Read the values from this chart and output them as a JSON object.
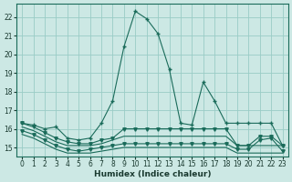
{
  "xlabel": "Humidex (Indice chaleur)",
  "background_color": "#cce8e4",
  "grid_color": "#99ccc6",
  "line_color": "#1a6b5a",
  "xlim": [
    -0.5,
    23.5
  ],
  "ylim": [
    14.5,
    22.7
  ],
  "yticks": [
    15,
    16,
    17,
    18,
    19,
    20,
    21,
    22
  ],
  "xticks": [
    0,
    1,
    2,
    3,
    4,
    5,
    6,
    7,
    8,
    9,
    10,
    11,
    12,
    13,
    14,
    15,
    16,
    17,
    18,
    19,
    20,
    21,
    22,
    23
  ],
  "main_x": [
    0,
    1,
    2,
    3,
    4,
    5,
    6,
    7,
    8,
    9,
    10,
    11,
    12,
    13,
    14,
    15,
    16,
    17,
    18,
    19,
    20,
    21,
    22,
    23
  ],
  "main_y": [
    16.3,
    16.2,
    16.0,
    16.1,
    15.5,
    15.4,
    15.5,
    16.3,
    17.5,
    20.4,
    22.3,
    21.9,
    21.1,
    19.2,
    16.3,
    16.2,
    18.5,
    17.5,
    16.3,
    16.3,
    16.3,
    16.3,
    16.3,
    15.1
  ],
  "line2_x": [
    0,
    1,
    2,
    3,
    4,
    5,
    6,
    7,
    8,
    9,
    10,
    11,
    12,
    13,
    14,
    15,
    16,
    17,
    18,
    19,
    20,
    21,
    22,
    23
  ],
  "line2_y": [
    16.3,
    16.1,
    15.8,
    15.5,
    15.3,
    15.2,
    15.2,
    15.4,
    15.5,
    16.0,
    16.0,
    16.0,
    16.0,
    16.0,
    16.0,
    16.0,
    16.0,
    16.0,
    16.0,
    15.1,
    15.1,
    15.6,
    15.6,
    15.1
  ],
  "line3_x": [
    0,
    1,
    2,
    3,
    4,
    5,
    6,
    7,
    8,
    9,
    10,
    11,
    12,
    13,
    14,
    15,
    16,
    17,
    18,
    19,
    20,
    21,
    22,
    23
  ],
  "line3_y": [
    16.1,
    15.9,
    15.6,
    15.3,
    15.1,
    15.1,
    15.1,
    15.2,
    15.4,
    15.6,
    15.6,
    15.6,
    15.6,
    15.6,
    15.6,
    15.6,
    15.6,
    15.6,
    15.6,
    15.1,
    15.1,
    15.1,
    15.1,
    15.1
  ],
  "line4_x": [
    0,
    1,
    2,
    3,
    4,
    5,
    6,
    7,
    8,
    9,
    10,
    11,
    12,
    13,
    14,
    15,
    16,
    17,
    18,
    19,
    20,
    21,
    22,
    23
  ],
  "line4_y": [
    15.9,
    15.7,
    15.4,
    15.1,
    14.9,
    14.8,
    14.9,
    15.0,
    15.1,
    15.2,
    15.2,
    15.2,
    15.2,
    15.2,
    15.2,
    15.2,
    15.2,
    15.2,
    15.2,
    14.9,
    14.9,
    15.4,
    15.5,
    14.8
  ],
  "line5_x": [
    0,
    1,
    2,
    3,
    4,
    5,
    6,
    7,
    8,
    9,
    10,
    11,
    12,
    13,
    14,
    15,
    16,
    17,
    18,
    19,
    20,
    21,
    22,
    23
  ],
  "line5_y": [
    15.7,
    15.5,
    15.2,
    14.9,
    14.7,
    14.7,
    14.7,
    14.8,
    14.9,
    15.0,
    15.0,
    15.0,
    15.0,
    15.0,
    15.0,
    15.0,
    15.0,
    15.0,
    15.0,
    14.7,
    14.7,
    14.7,
    14.7,
    14.7
  ]
}
